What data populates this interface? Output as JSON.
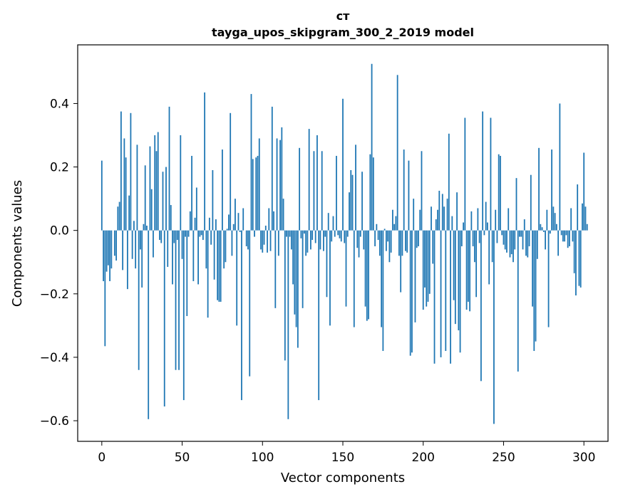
{
  "chart_data": {
    "type": "bar",
    "title_line1": "ст",
    "title_line2": "tayga_upos_skipgram_300_2_2019 model",
    "xlabel": "Vector components",
    "ylabel": "Components values",
    "xlim": [
      -15,
      315
    ],
    "ylim": [
      -0.665,
      0.585
    ],
    "bar_color": "#1f77b4",
    "xticks": [
      0,
      50,
      100,
      150,
      200,
      250,
      300
    ],
    "xtick_labels": [
      "0",
      "50",
      "100",
      "150",
      "200",
      "250",
      "300"
    ],
    "yticks": [
      -0.6,
      -0.4,
      -0.2,
      0.0,
      0.2,
      0.4
    ],
    "ytick_labels": [
      "−0.6",
      "−0.4",
      "−0.2",
      "0.0",
      "0.2",
      "0.4"
    ],
    "values": [
      0.22,
      -0.16,
      -0.365,
      -0.13,
      -0.11,
      -0.16,
      -0.12,
      0.0,
      -0.08,
      -0.095,
      0.075,
      0.09,
      0.375,
      -0.125,
      0.29,
      0.23,
      -0.185,
      0.11,
      0.37,
      -0.09,
      0.03,
      -0.12,
      0.27,
      -0.44,
      -0.06,
      -0.18,
      0.02,
      0.205,
      0.015,
      -0.595,
      0.265,
      0.13,
      -0.085,
      0.3,
      0.25,
      0.31,
      -0.03,
      -0.04,
      0.185,
      -0.555,
      0.2,
      -0.115,
      0.39,
      0.08,
      -0.17,
      -0.04,
      -0.44,
      -0.03,
      -0.44,
      0.3,
      -0.09,
      -0.535,
      -0.02,
      -0.27,
      -0.02,
      0.06,
      0.235,
      -0.16,
      0.04,
      0.135,
      -0.17,
      -0.02,
      -0.015,
      -0.03,
      0.435,
      -0.12,
      -0.275,
      0.04,
      -0.045,
      0.19,
      -0.155,
      0.035,
      -0.22,
      -0.225,
      -0.225,
      0.255,
      -0.12,
      -0.1,
      0.005,
      0.05,
      0.37,
      -0.08,
      0.02,
      0.1,
      -0.3,
      0.055,
      -0.005,
      -0.535,
      0.07,
      0.0,
      -0.05,
      -0.06,
      -0.46,
      0.43,
      0.225,
      -0.02,
      0.23,
      0.235,
      0.29,
      -0.06,
      -0.07,
      -0.045,
      0.015,
      -0.07,
      0.07,
      -0.065,
      0.39,
      0.06,
      -0.245,
      0.29,
      -0.08,
      0.285,
      0.325,
      0.1,
      -0.41,
      -0.02,
      -0.595,
      -0.02,
      -0.06,
      -0.17,
      -0.265,
      -0.305,
      -0.37,
      0.26,
      -0.025,
      -0.245,
      -0.01,
      -0.08,
      -0.07,
      0.32,
      -0.06,
      -0.03,
      0.25,
      -0.04,
      0.3,
      -0.535,
      -0.06,
      0.25,
      -0.065,
      -0.02,
      -0.21,
      0.055,
      -0.3,
      -0.035,
      0.045,
      -0.02,
      0.235,
      -0.015,
      -0.025,
      -0.035,
      0.415,
      -0.04,
      -0.24,
      -0.02,
      0.12,
      0.19,
      0.175,
      -0.305,
      0.27,
      -0.055,
      -0.085,
      -0.02,
      0.185,
      -0.06,
      -0.24,
      -0.285,
      -0.28,
      0.24,
      0.525,
      0.23,
      -0.05,
      0.02,
      -0.03,
      -0.08,
      -0.305,
      -0.38,
      0.005,
      -0.065,
      -0.035,
      -0.1,
      -0.07,
      0.065,
      0.02,
      0.045,
      0.49,
      -0.08,
      -0.195,
      -0.08,
      0.255,
      -0.065,
      -0.07,
      0.22,
      -0.395,
      -0.385,
      0.1,
      -0.29,
      -0.055,
      -0.05,
      0.065,
      0.25,
      -0.25,
      -0.18,
      -0.24,
      -0.225,
      -0.2,
      0.075,
      -0.105,
      -0.42,
      0.035,
      0.065,
      0.125,
      -0.4,
      0.115,
      0.075,
      -0.38,
      0.1,
      0.305,
      -0.42,
      0.045,
      -0.22,
      -0.295,
      0.12,
      -0.315,
      -0.385,
      -0.05,
      0.025,
      0.355,
      -0.25,
      -0.225,
      -0.255,
      0.06,
      -0.05,
      -0.1,
      -0.21,
      0.07,
      -0.04,
      -0.475,
      0.375,
      -0.015,
      0.09,
      0.025,
      -0.17,
      0.355,
      -0.1,
      -0.61,
      0.065,
      -0.04,
      0.24,
      0.235,
      -0.015,
      -0.045,
      -0.06,
      -0.07,
      0.07,
      -0.085,
      -0.075,
      -0.1,
      -0.06,
      0.165,
      -0.445,
      -0.02,
      -0.02,
      -0.06,
      0.035,
      -0.08,
      -0.085,
      -0.05,
      0.175,
      -0.24,
      -0.38,
      -0.35,
      -0.09,
      0.26,
      0.02,
      0.01,
      -0.005,
      -0.06,
      0.065,
      -0.305,
      -0.01,
      0.255,
      0.075,
      0.055,
      0.02,
      -0.08,
      0.4,
      -0.015,
      -0.035,
      -0.035,
      -0.015,
      -0.055,
      -0.05,
      0.07,
      -0.035,
      -0.135,
      -0.205,
      0.145,
      -0.175,
      -0.18,
      0.085,
      0.245,
      0.075,
      0.02
    ]
  }
}
